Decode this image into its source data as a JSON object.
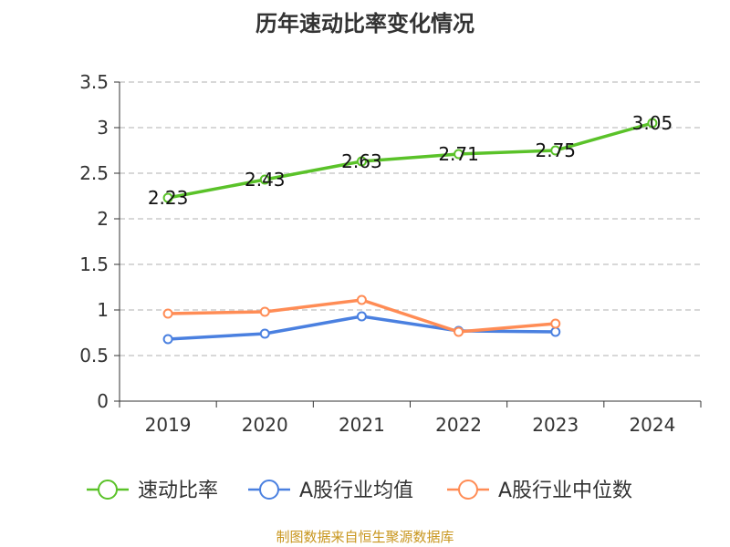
{
  "title": "历年速动比率变化情况",
  "source": "制图数据来自恒生聚源数据库",
  "chart_data": {
    "type": "line",
    "title": "历年速动比率变化情况",
    "categories": [
      "2019",
      "2020",
      "2021",
      "2022",
      "2023",
      "2024"
    ],
    "ylim": [
      0,
      3.5
    ],
    "yticks": [
      "0",
      "0.5",
      "1",
      "1.5",
      "2",
      "2.5",
      "3",
      "3.5"
    ],
    "grid": true,
    "legend": "bottom",
    "series": [
      {
        "name": "速动比率",
        "color": "#5ac229",
        "values": [
          2.23,
          2.43,
          2.63,
          2.71,
          2.75,
          3.05
        ],
        "labels": [
          "2.23",
          "2.43",
          "2.63",
          "2.71",
          "2.75",
          "3.05"
        ]
      },
      {
        "name": "A股行业均值",
        "color": "#4a80e0",
        "values": [
          0.68,
          0.74,
          0.93,
          0.77,
          0.76,
          null
        ]
      },
      {
        "name": "A股行业中位数",
        "color": "#ff8c55",
        "values": [
          0.96,
          0.98,
          1.11,
          0.76,
          0.85,
          null
        ]
      }
    ]
  }
}
